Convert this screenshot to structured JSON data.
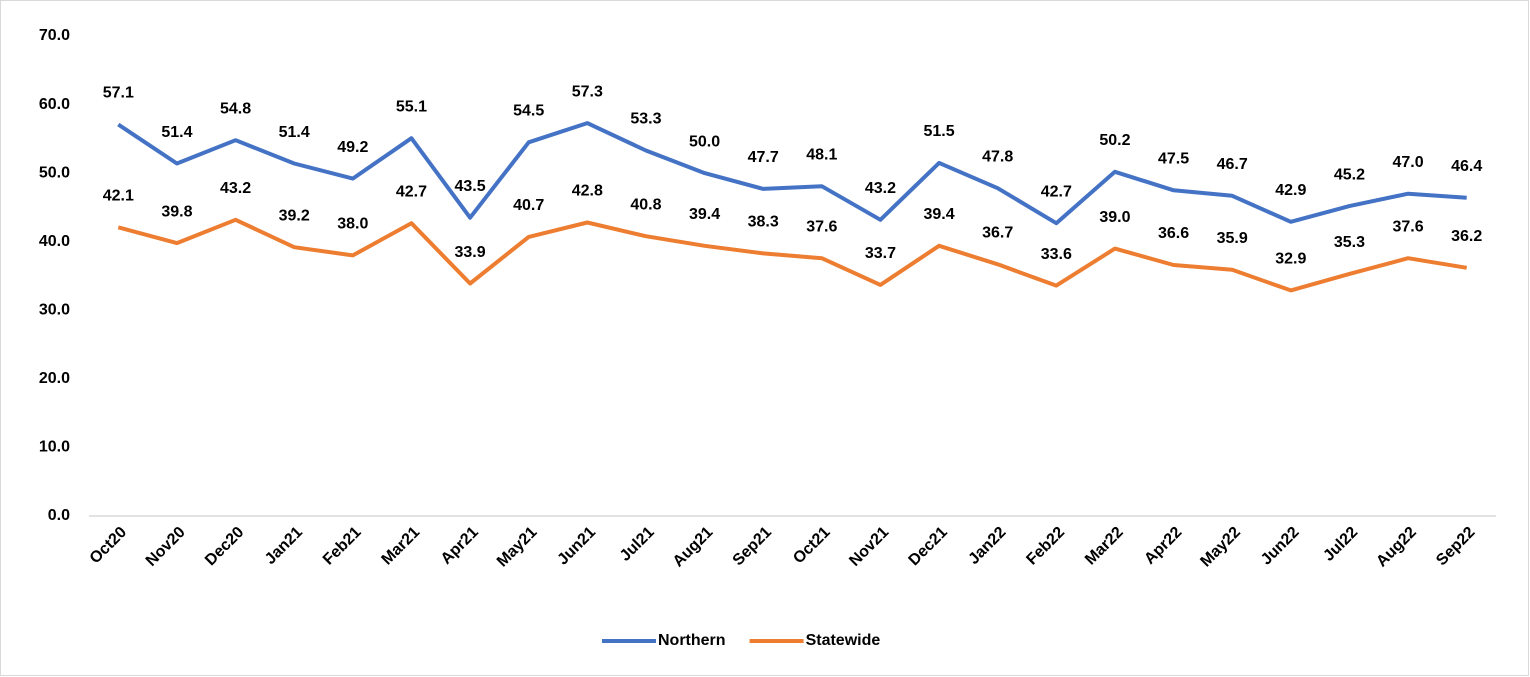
{
  "chart_data": {
    "type": "line",
    "categories": [
      "Oct20",
      "Nov20",
      "Dec20",
      "Jan21",
      "Feb21",
      "Mar21",
      "Apr21",
      "May21",
      "Jun21",
      "Jul21",
      "Aug21",
      "Sep21",
      "Oct21",
      "Nov21",
      "Dec21",
      "Jan22",
      "Feb22",
      "Mar22",
      "Apr22",
      "May22",
      "Jun22",
      "Jul22",
      "Aug22",
      "Sep22"
    ],
    "series": [
      {
        "name": "Northern",
        "color": "#4472c4",
        "values": [
          57.1,
          51.4,
          54.8,
          51.4,
          49.2,
          55.1,
          43.5,
          54.5,
          57.3,
          53.3,
          50,
          47.7,
          48.1,
          43.2,
          51.5,
          47.8,
          42.7,
          50.2,
          47.5,
          46.7,
          42.9,
          45.2,
          47,
          46.4
        ],
        "value_labels": [
          "57.1",
          "51.4",
          "54.8",
          "51.4",
          "49.2",
          "55.1",
          "43.5",
          "54.5",
          "57.3",
          "53.3",
          "50.0",
          "47.7",
          "48.1",
          "43.2",
          "51.5",
          "47.8",
          "42.7",
          "50.2",
          "47.5",
          "46.7",
          "42.9",
          "45.2",
          "47.0",
          "46.4"
        ]
      },
      {
        "name": "Statewide",
        "color": "#ed7d31",
        "values": [
          42.1,
          39.8,
          43.2,
          39.2,
          38,
          42.7,
          33.9,
          40.7,
          42.8,
          40.8,
          39.4,
          38.3,
          37.6,
          33.7,
          39.4,
          36.7,
          33.6,
          39,
          36.6,
          35.9,
          32.9,
          35.3,
          37.6,
          36.2
        ],
        "value_labels": [
          "42.1",
          "39.8",
          "43.2",
          "39.2",
          "38.0",
          "42.7",
          "33.9",
          "40.7",
          "42.8",
          "40.8",
          "39.4",
          "38.3",
          "37.6",
          "33.7",
          "39.4",
          "36.7",
          "33.6",
          "39.0",
          "36.6",
          "35.9",
          "32.9",
          "35.3",
          "37.6",
          "36.2"
        ]
      }
    ],
    "ylim": [
      0,
      70
    ],
    "yticks": [
      {
        "value": 0,
        "label": "0.0"
      },
      {
        "value": 10,
        "label": "10.0"
      },
      {
        "value": 20,
        "label": "20.0"
      },
      {
        "value": 30,
        "label": "30.0"
      },
      {
        "value": 40,
        "label": "40.0"
      },
      {
        "value": 50,
        "label": "50.0"
      },
      {
        "value": 60,
        "label": "60.0"
      },
      {
        "value": 70,
        "label": "70.0"
      }
    ],
    "grid": false,
    "legend": "bottom"
  }
}
